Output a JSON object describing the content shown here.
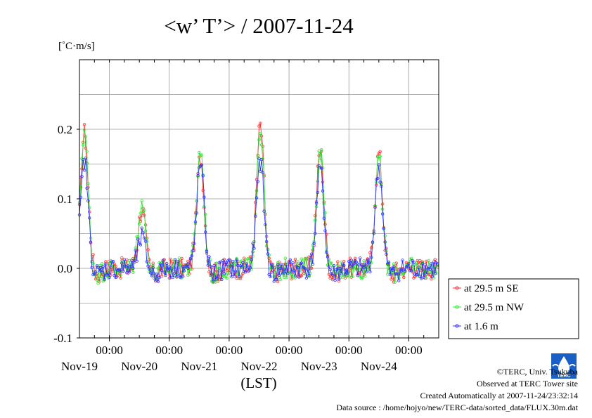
{
  "chart_data": {
    "type": "line",
    "title": "<w’ T’> / 2007-11-24",
    "ylabel": "[˚C·m/s]",
    "xlabel": "(LST)",
    "ylim": [
      -0.1,
      0.3
    ],
    "xlim": [
      "2007-11-18T12:00",
      "2007-11-24T12:00"
    ],
    "yticks": [
      {
        "v": 0.2,
        "label": "0.2"
      },
      {
        "v": 0.1,
        "label": "0.1"
      },
      {
        "v": 0.0,
        "label": "0.0"
      },
      {
        "v": -0.1,
        "label": "-0.1"
      }
    ],
    "time_ticks": [
      "00:00",
      "00:00",
      "00:00",
      "00:00",
      "00:00",
      "00:00"
    ],
    "day_labels": [
      "Nov-19",
      "Nov-20",
      "Nov-21",
      "Nov-22",
      "Nov-23",
      "Nov-24"
    ],
    "grid": true,
    "legend_position": "right-bottom",
    "series": [
      {
        "name": "at 29.5 m SE",
        "color": "#ff3030",
        "peaks": [
          {
            "x": "2007-11-18T14:00",
            "y": 0.195
          },
          {
            "x": "2007-11-19T13:00",
            "y": 0.085
          },
          {
            "x": "2007-11-20T12:30",
            "y": 0.16
          },
          {
            "x": "2007-11-21T12:30",
            "y": 0.205
          },
          {
            "x": "2007-11-22T12:30",
            "y": 0.17
          },
          {
            "x": "2007-11-23T12:00",
            "y": 0.165
          }
        ]
      },
      {
        "name": "at 29.5 m NW",
        "color": "#30e830",
        "peaks": [
          {
            "x": "2007-11-18T14:00",
            "y": 0.2
          },
          {
            "x": "2007-11-19T13:00",
            "y": 0.095
          },
          {
            "x": "2007-11-20T12:30",
            "y": 0.17
          },
          {
            "x": "2007-11-21T12:30",
            "y": 0.2
          },
          {
            "x": "2007-11-22T12:30",
            "y": 0.17
          },
          {
            "x": "2007-11-23T12:00",
            "y": 0.155
          }
        ]
      },
      {
        "name": "at 1.6 m",
        "color": "#3030ff",
        "peaks": [
          {
            "x": "2007-11-18T14:00",
            "y": 0.155
          },
          {
            "x": "2007-11-19T13:00",
            "y": 0.045
          },
          {
            "x": "2007-11-20T12:30",
            "y": 0.15
          },
          {
            "x": "2007-11-21T12:30",
            "y": 0.155
          },
          {
            "x": "2007-11-22T12:30",
            "y": 0.14
          },
          {
            "x": "2007-11-23T12:00",
            "y": 0.145
          }
        ]
      }
    ]
  },
  "footer": {
    "copyright": "©TERC, Univ. Tsukuba",
    "observed": "Observed at TERC Tower site",
    "created": "Created Automatically at 2007-11-24/23:32:14",
    "source": "Data source : /home/hojyo/new/TERC-data/sorted_data/FLUX.30m.dat",
    "logo_text": "TERC"
  }
}
